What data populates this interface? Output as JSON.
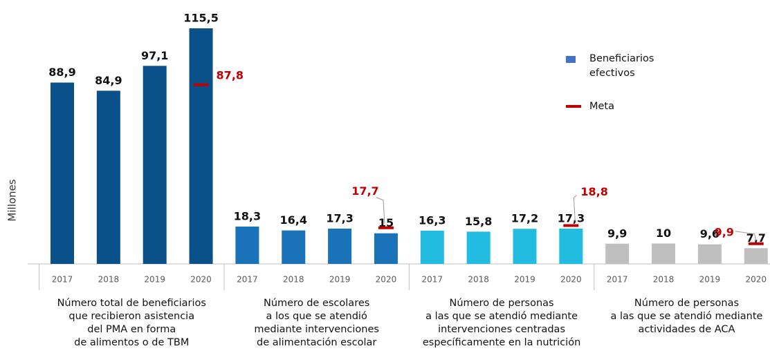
{
  "chart_data": {
    "type": "bar",
    "y_label": "Millones",
    "legend": {
      "bar_name": "Beneficiarios\nefectivos",
      "bar_color": "#4472c4",
      "target_name": "Meta",
      "target_color": "#c00000"
    },
    "groups": [
      {
        "label": "Número total de beneficiarios\nque recibieron asistencia\ndel PMA en forma\nde alimentos o de TBM",
        "color": "#0b5189",
        "categories": [
          "2017",
          "2018",
          "2019",
          "2020"
        ],
        "values": [
          88.9,
          84.9,
          97.1,
          115.5
        ],
        "value_labels": [
          "88,9",
          "84,9",
          "97,1",
          "115,5"
        ],
        "target": 87.8,
        "target_label": "87,8"
      },
      {
        "label": "Número de escolares\na los que se atendió\nmediante intervenciones\nde alimentación escolar",
        "color": "#1a72b8",
        "categories": [
          "2017",
          "2018",
          "2019",
          "2020"
        ],
        "values": [
          18.3,
          16.4,
          17.3,
          15
        ],
        "value_labels": [
          "18,3",
          "16,4",
          "17,3",
          "15"
        ],
        "target": 17.7,
        "target_label": "17,7"
      },
      {
        "label": "Número de personas\na las que se atendió mediante\nintervenciones centradas\nespecíficamente en la nutrición",
        "color": "#21bce0",
        "categories": [
          "2017",
          "2018",
          "2019",
          "2020"
        ],
        "values": [
          16.3,
          15.8,
          17.2,
          17.3
        ],
        "value_labels": [
          "16,3",
          "15,8",
          "17,2",
          "17,3"
        ],
        "target": 18.8,
        "target_label": "18,8"
      },
      {
        "label": "Número de personas\na las que se atendió mediante\nactividades de ACA",
        "color": "#bfbfbf",
        "categories": [
          "2017",
          "2018",
          "2019",
          "2020"
        ],
        "values": [
          9.9,
          10,
          9.6,
          7.7
        ],
        "value_labels": [
          "9,9",
          "10",
          "9,6",
          "7,7"
        ],
        "target": 9.9,
        "target_label": "9,9"
      }
    ]
  }
}
